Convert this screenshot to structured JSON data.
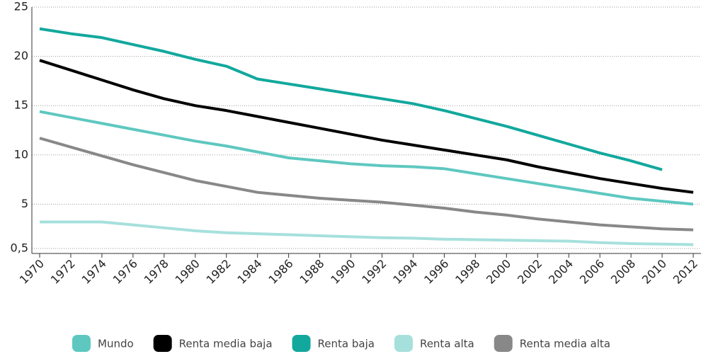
{
  "chart_data": {
    "type": "line",
    "x": [
      1970,
      1972,
      1974,
      1976,
      1978,
      1980,
      1982,
      1984,
      1986,
      1988,
      1990,
      1992,
      1994,
      1996,
      1998,
      2000,
      2002,
      2004,
      2006,
      2008,
      2010,
      2012
    ],
    "series": [
      {
        "name": "Mundo",
        "color": "#5ec8c0",
        "values": [
          14.4,
          13.8,
          13.2,
          12.6,
          12.0,
          11.4,
          10.9,
          10.3,
          9.7,
          9.4,
          9.1,
          8.9,
          8.8,
          8.6,
          8.1,
          7.6,
          7.1,
          6.6,
          6.1,
          5.6,
          5.3,
          5.0
        ]
      },
      {
        "name": "Renta media baja",
        "color": "#000000",
        "values": [
          19.6,
          18.6,
          17.6,
          16.6,
          15.7,
          15.0,
          14.5,
          13.9,
          13.3,
          12.7,
          12.1,
          11.5,
          11.0,
          10.5,
          10.0,
          9.5,
          8.8,
          8.2,
          7.6,
          7.1,
          6.6,
          6.2
        ]
      },
      {
        "name": "Renta baja",
        "color": "#12a89d",
        "values": [
          22.8,
          22.3,
          21.9,
          21.2,
          20.5,
          19.7,
          19.0,
          17.7,
          17.2,
          16.7,
          16.2,
          15.7,
          15.2,
          14.5,
          13.7,
          12.9,
          12.0,
          11.1,
          10.2,
          9.4,
          8.5,
          null
        ]
      },
      {
        "name": "Renta alta",
        "color": "#a6e0dc",
        "values": [
          3.2,
          3.2,
          3.2,
          2.9,
          2.6,
          2.3,
          2.1,
          2.0,
          1.9,
          1.8,
          1.7,
          1.6,
          1.55,
          1.45,
          1.4,
          1.35,
          1.3,
          1.25,
          1.1,
          1.0,
          0.95,
          0.9
        ]
      },
      {
        "name": "Renta media alta",
        "color": "#888888",
        "values": [
          11.7,
          10.8,
          9.9,
          9.0,
          8.2,
          7.4,
          6.8,
          6.2,
          5.9,
          5.6,
          5.4,
          5.2,
          4.9,
          4.6,
          4.2,
          3.9,
          3.5,
          3.2,
          2.9,
          2.7,
          2.5,
          2.4
        ]
      }
    ],
    "xlim": [
      1969.5,
      2012.5
    ],
    "xticks": [
      1970,
      1972,
      1974,
      1976,
      1978,
      1980,
      1982,
      1984,
      1986,
      1988,
      1990,
      1992,
      1994,
      1996,
      1998,
      2000,
      2002,
      2004,
      2006,
      2008,
      2010,
      2012
    ],
    "ylim": [
      0,
      25
    ],
    "yticks": [
      {
        "value": 0.5,
        "label": "0,5"
      },
      5,
      10,
      15,
      20,
      25
    ],
    "grid": true,
    "legend": "bottom"
  }
}
